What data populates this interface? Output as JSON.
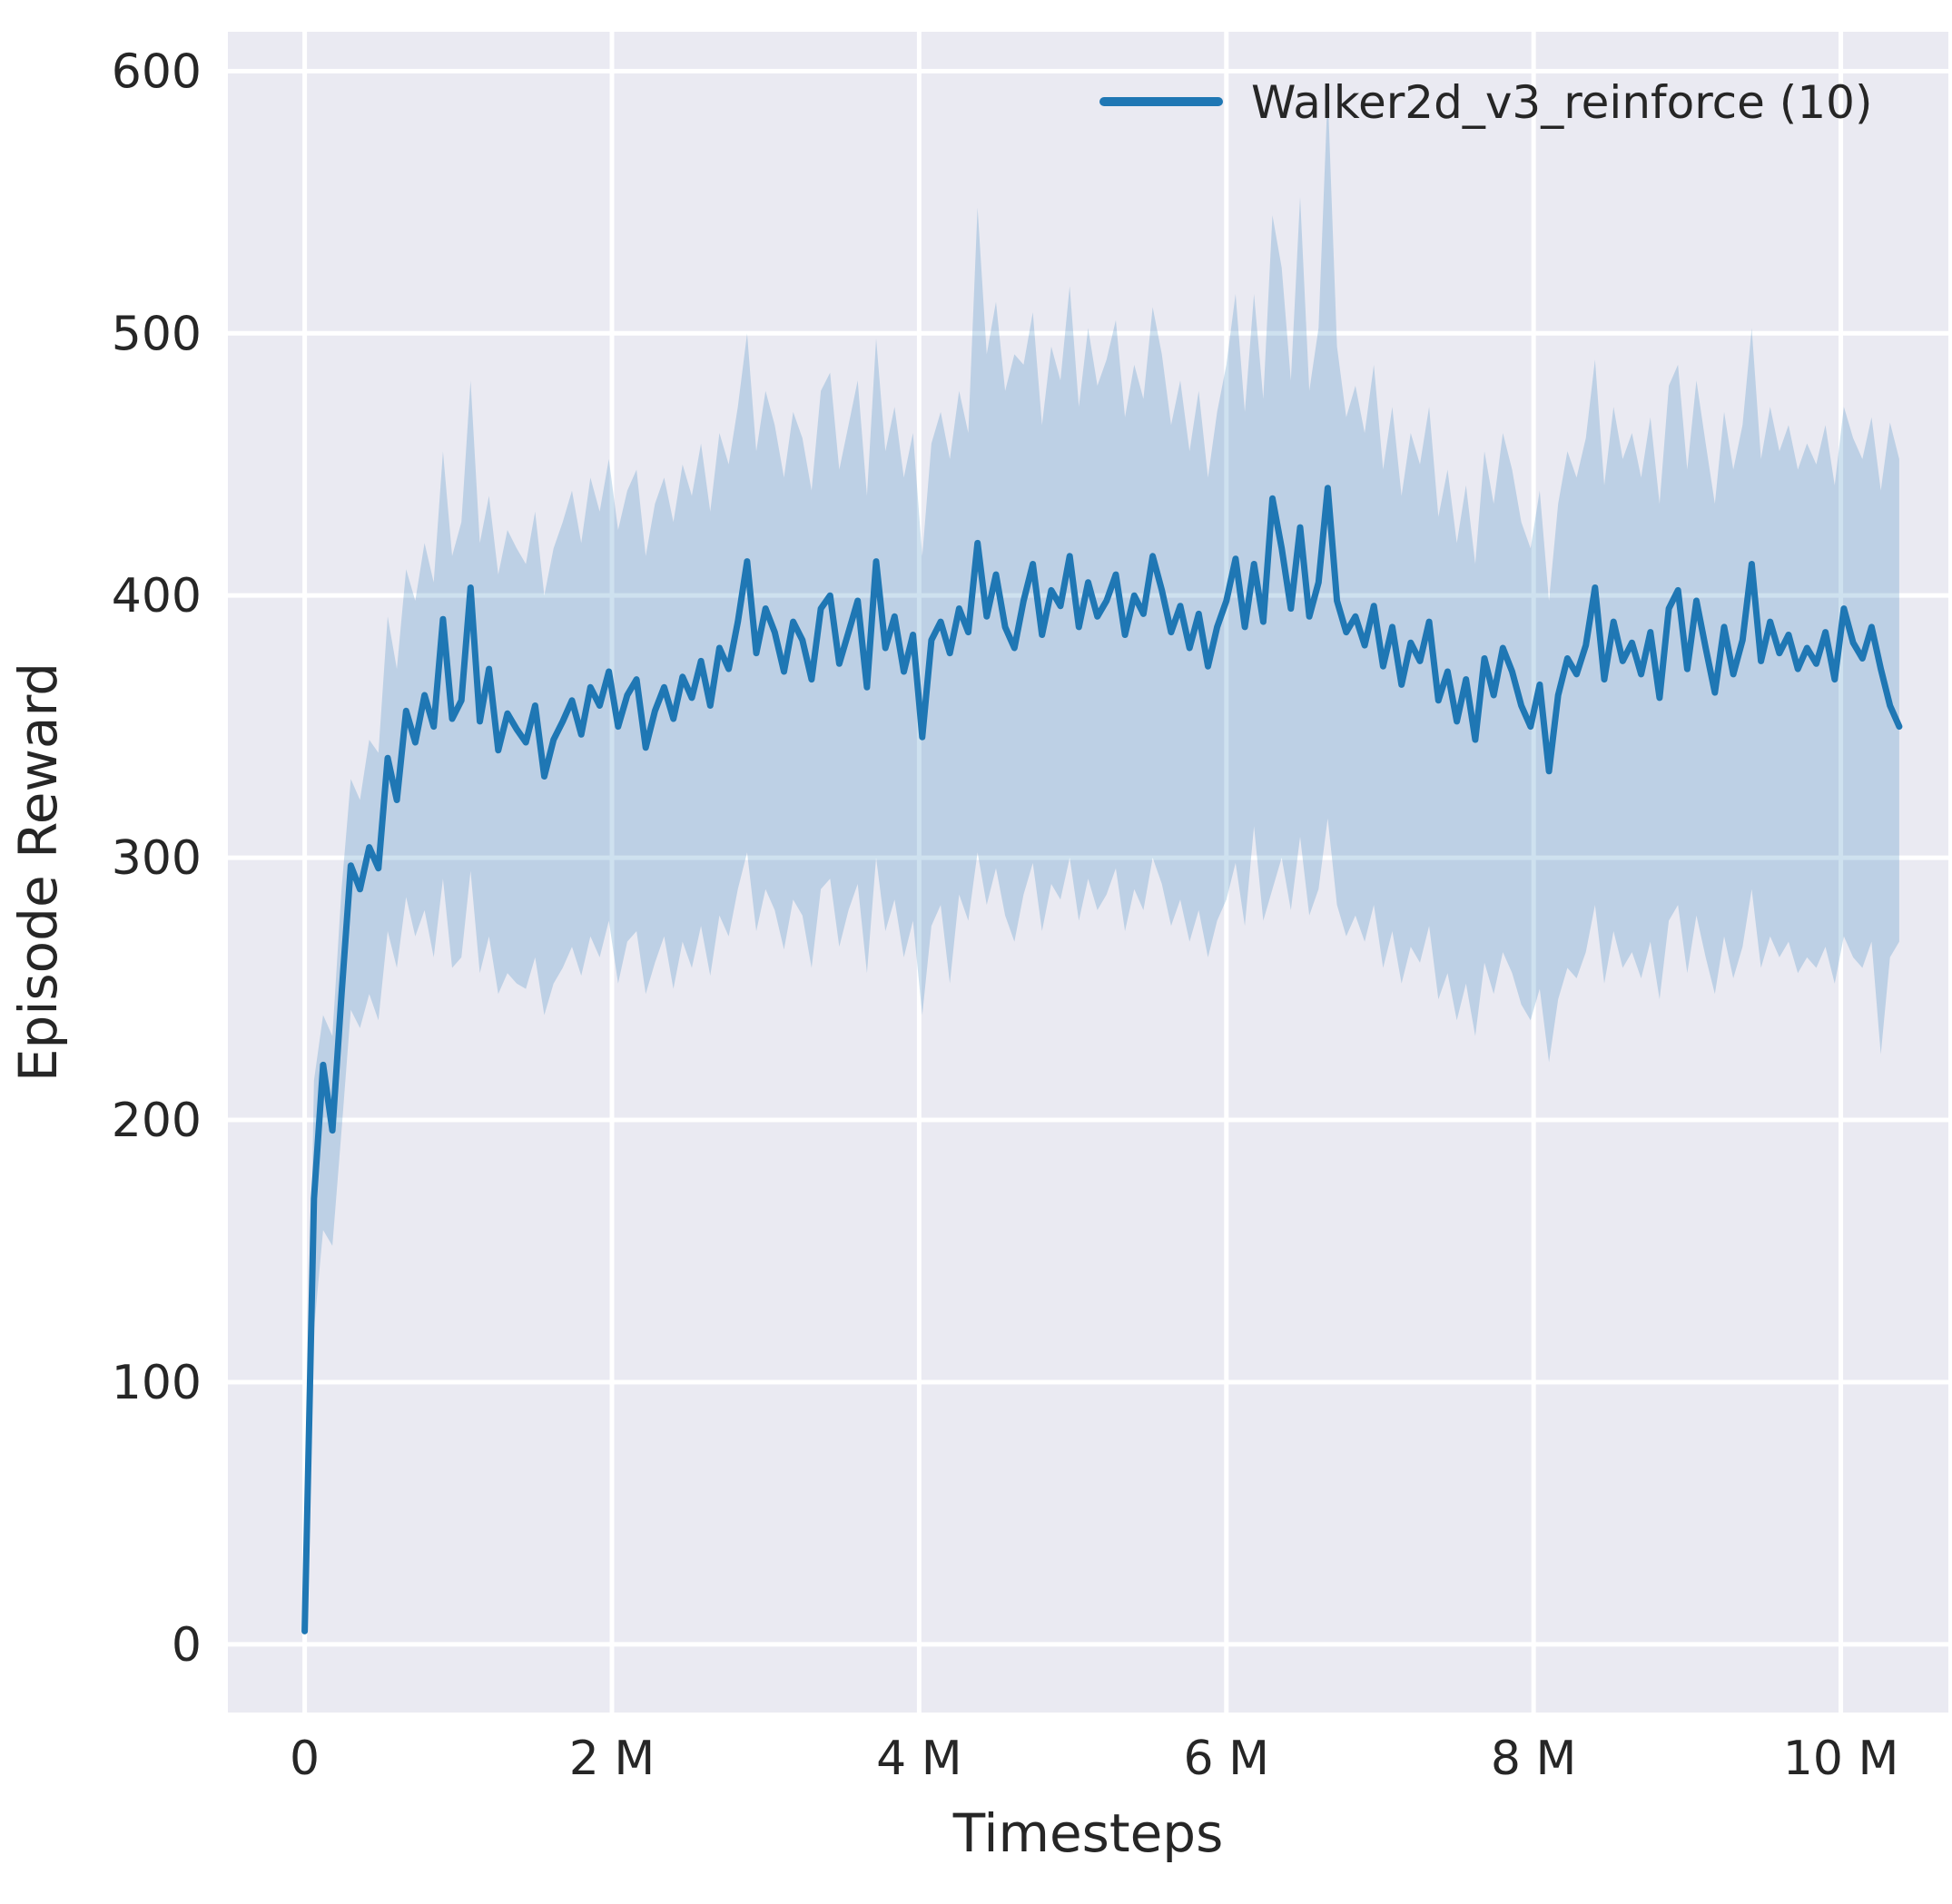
{
  "figure": {
    "background_color": "#ffffff",
    "axes_background_color": "#eaeaf2",
    "grid_color": "#ffffff",
    "text_color": "#262626"
  },
  "chart_data": {
    "type": "line",
    "title": "",
    "xlabel": "Timesteps",
    "ylabel": "Episode Reward",
    "grid": true,
    "x_unit": "millions of timesteps",
    "xlim_m": [
      -0.5,
      10.7
    ],
    "ylim": [
      -26,
      615
    ],
    "x_ticks": [
      {
        "value_m": 0,
        "label": "0"
      },
      {
        "value_m": 2,
        "label": "2 M"
      },
      {
        "value_m": 4,
        "label": "4 M"
      },
      {
        "value_m": 6,
        "label": "6 M"
      },
      {
        "value_m": 8,
        "label": "8 M"
      },
      {
        "value_m": 10,
        "label": "10 M"
      }
    ],
    "y_ticks": [
      {
        "value": 0,
        "label": "0"
      },
      {
        "value": 100,
        "label": "100"
      },
      {
        "value": 200,
        "label": "200"
      },
      {
        "value": 300,
        "label": "300"
      },
      {
        "value": 400,
        "label": "400"
      },
      {
        "value": 500,
        "label": "500"
      },
      {
        "value": 600,
        "label": "600"
      }
    ],
    "legend": {
      "position": "upper right",
      "entries": [
        {
          "label": "Walker2d_v3_reinforce (10)",
          "color": "#1f77b4"
        }
      ]
    },
    "series": [
      {
        "name": "Walker2d_v3_reinforce (10)",
        "color": "#1f77b4",
        "line_width": 7,
        "band_opacity": 0.22,
        "x_start_m": 0.0,
        "x_step_m": 0.06,
        "mean": [
          5,
          170,
          221,
          196,
          248,
          297,
          288,
          304,
          296,
          338,
          322,
          356,
          344,
          362,
          350,
          391,
          353,
          360,
          403,
          352,
          372,
          341,
          355,
          349,
          344,
          358,
          331,
          345,
          352,
          360,
          347,
          365,
          358,
          371,
          350,
          362,
          368,
          342,
          356,
          365,
          353,
          369,
          361,
          375,
          358,
          380,
          372,
          390,
          413,
          378,
          395,
          386,
          371,
          390,
          383,
          368,
          395,
          400,
          374,
          386,
          398,
          365,
          413,
          380,
          392,
          371,
          385,
          346,
          383,
          390,
          378,
          395,
          386,
          420,
          392,
          408,
          388,
          380,
          398,
          412,
          385,
          402,
          396,
          415,
          388,
          405,
          392,
          398,
          408,
          385,
          400,
          393,
          415,
          402,
          386,
          396,
          380,
          393,
          373,
          388,
          398,
          414,
          388,
          412,
          390,
          437,
          418,
          395,
          426,
          392,
          405,
          441,
          398,
          386,
          392,
          381,
          396,
          373,
          388,
          366,
          382,
          375,
          390,
          360,
          371,
          352,
          368,
          345,
          376,
          362,
          380,
          371,
          358,
          350,
          366,
          333,
          362,
          376,
          370,
          381,
          403,
          368,
          390,
          375,
          382,
          370,
          386,
          361,
          395,
          402,
          372,
          398,
          380,
          363,
          388,
          370,
          383,
          412,
          375,
          390,
          378,
          385,
          372,
          380,
          374,
          386,
          368,
          395,
          382,
          376,
          388,
          372,
          358,
          350
        ],
        "band_lower": [
          3,
          120,
          158,
          152,
          196,
          242,
          235,
          248,
          238,
          272,
          258,
          285,
          270,
          280,
          262,
          292,
          258,
          262,
          295,
          256,
          270,
          248,
          256,
          252,
          250,
          262,
          240,
          252,
          258,
          266,
          255,
          270,
          262,
          276,
          252,
          268,
          272,
          248,
          260,
          270,
          250,
          268,
          258,
          274,
          255,
          278,
          270,
          288,
          302,
          272,
          288,
          280,
          265,
          284,
          278,
          258,
          288,
          292,
          266,
          280,
          290,
          256,
          300,
          272,
          284,
          262,
          276,
          240,
          274,
          282,
          252,
          286,
          276,
          302,
          282,
          296,
          278,
          268,
          286,
          298,
          272,
          290,
          284,
          300,
          276,
          292,
          280,
          286,
          296,
          272,
          288,
          280,
          300,
          290,
          274,
          284,
          268,
          280,
          262,
          276,
          284,
          298,
          274,
          312,
          276,
          288,
          300,
          280,
          308,
          278,
          288,
          315,
          282,
          270,
          278,
          268,
          282,
          258,
          272,
          252,
          266,
          260,
          274,
          246,
          256,
          238,
          252,
          232,
          260,
          248,
          264,
          256,
          244,
          238,
          250,
          222,
          246,
          258,
          254,
          264,
          282,
          252,
          272,
          258,
          264,
          254,
          268,
          246,
          276,
          282,
          256,
          278,
          262,
          248,
          270,
          254,
          266,
          288,
          258,
          270,
          262,
          268,
          256,
          262,
          258,
          266,
          252,
          270,
          262,
          258,
          268,
          225,
          262,
          268
        ],
        "band_upper": [
          8,
          215,
          240,
          232,
          288,
          330,
          322,
          345,
          340,
          392,
          372,
          410,
          398,
          420,
          405,
          455,
          415,
          428,
          482,
          420,
          438,
          408,
          425,
          418,
          412,
          432,
          400,
          418,
          428,
          440,
          420,
          445,
          432,
          452,
          425,
          440,
          448,
          415,
          435,
          445,
          428,
          450,
          438,
          458,
          432,
          462,
          450,
          472,
          500,
          455,
          478,
          465,
          445,
          470,
          460,
          440,
          478,
          485,
          448,
          465,
          482,
          438,
          498,
          455,
          472,
          445,
          462,
          415,
          458,
          470,
          452,
          478,
          462,
          548,
          492,
          512,
          478,
          492,
          488,
          508,
          465,
          495,
          482,
          518,
          472,
          502,
          480,
          490,
          505,
          468,
          488,
          475,
          510,
          492,
          465,
          482,
          455,
          478,
          445,
          470,
          488,
          515,
          470,
          515,
          475,
          545,
          525,
          482,
          552,
          478,
          502,
          592,
          495,
          468,
          480,
          462,
          488,
          448,
          472,
          438,
          462,
          450,
          472,
          430,
          448,
          420,
          442,
          412,
          455,
          435,
          462,
          448,
          428,
          418,
          440,
          398,
          435,
          455,
          445,
          460,
          490,
          442,
          472,
          452,
          462,
          445,
          468,
          435,
          480,
          488,
          448,
          482,
          458,
          435,
          470,
          448,
          465,
          502,
          452,
          472,
          455,
          465,
          448,
          458,
          450,
          465,
          442,
          472,
          460,
          452,
          468,
          440,
          466,
          452
        ]
      }
    ]
  }
}
